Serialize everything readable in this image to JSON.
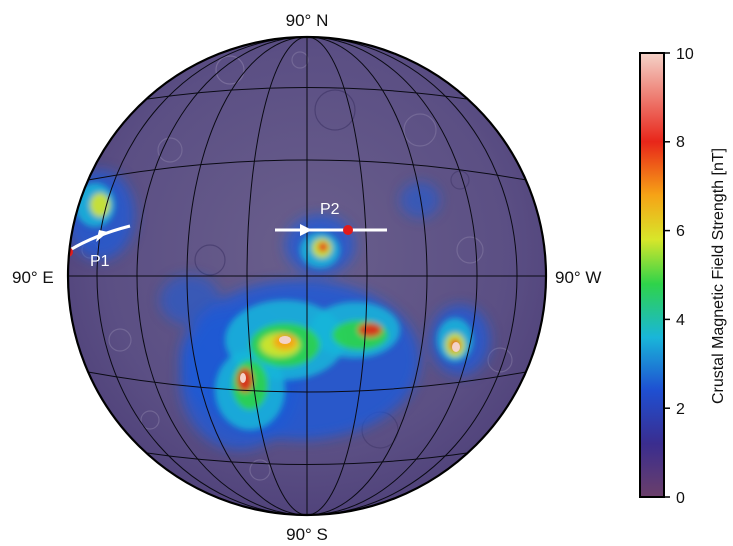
{
  "map": {
    "labels": {
      "north": "90° N",
      "south": "90° S",
      "east": "90° E",
      "west": "90° W"
    },
    "tracks": [
      {
        "name": "P1"
      },
      {
        "name": "P2"
      }
    ]
  },
  "colorbar": {
    "title": "Crustal Magnetic Field Strength [nT]",
    "ticks": [
      "0",
      "2",
      "4",
      "6",
      "8",
      "10"
    ],
    "colors": [
      "#6b3f6a",
      "#3a2d8f",
      "#1f4fd1",
      "#19b6d9",
      "#2fd34a",
      "#d8e62a",
      "#f6a316",
      "#e8261a",
      "#f4d2c8"
    ]
  }
}
